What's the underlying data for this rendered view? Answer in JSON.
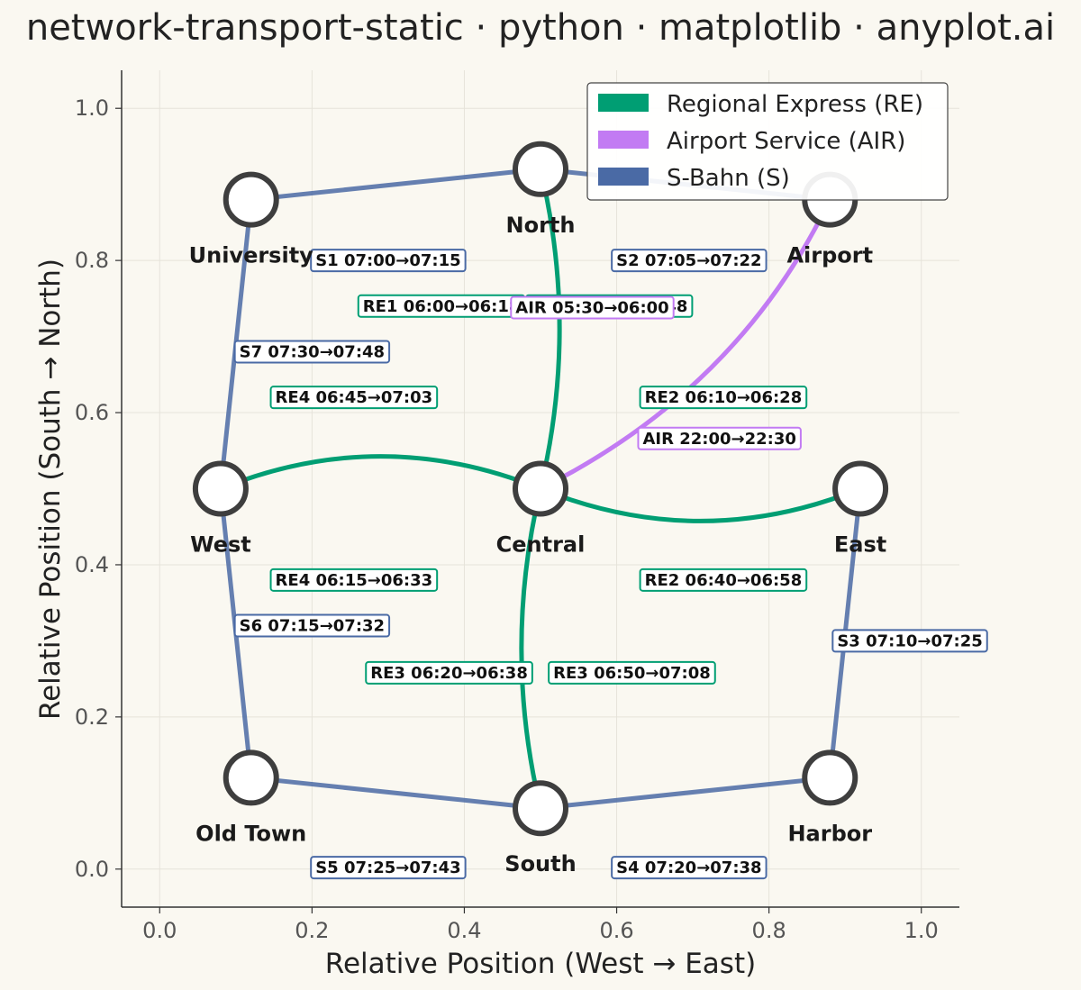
{
  "title": "network-transport-static · python · matplotlib · anyplot.ai",
  "chart_data": {
    "type": "network",
    "xlabel": "Relative Position (West → East)",
    "ylabel": "Relative Position (South → North)",
    "xlim": [
      -0.05,
      1.05
    ],
    "ylim": [
      -0.05,
      1.05
    ],
    "xticks": [
      0.0,
      0.2,
      0.4,
      0.6,
      0.8,
      1.0
    ],
    "yticks": [
      0.0,
      0.2,
      0.4,
      0.6,
      0.8,
      1.0
    ],
    "xtick_labels": [
      "0.0",
      "0.2",
      "0.4",
      "0.6",
      "0.8",
      "1.0"
    ],
    "ytick_labels": [
      "0.0",
      "0.2",
      "0.4",
      "0.6",
      "0.8",
      "1.0"
    ],
    "grid": true,
    "legend_position": "top-right",
    "series": [
      {
        "id": "RE",
        "name": "Regional Express (RE)",
        "color": "#009E73"
      },
      {
        "id": "AIR",
        "name": "Airport Service (AIR)",
        "color": "#C27BF3"
      },
      {
        "id": "S",
        "name": "S-Bahn (S)",
        "color": "#4A6AA5"
      }
    ],
    "stations": [
      {
        "id": "north",
        "name": "North",
        "x": 0.5,
        "y": 0.92
      },
      {
        "id": "university",
        "name": "University",
        "x": 0.12,
        "y": 0.88
      },
      {
        "id": "airport",
        "name": "Airport",
        "x": 0.88,
        "y": 0.88
      },
      {
        "id": "west",
        "name": "West",
        "x": 0.08,
        "y": 0.5
      },
      {
        "id": "central",
        "name": "Central",
        "x": 0.5,
        "y": 0.5
      },
      {
        "id": "east",
        "name": "East",
        "x": 0.92,
        "y": 0.5
      },
      {
        "id": "oldtown",
        "name": "Old Town",
        "x": 0.12,
        "y": 0.12
      },
      {
        "id": "south",
        "name": "South",
        "x": 0.5,
        "y": 0.08
      },
      {
        "id": "harbor",
        "name": "Harbor",
        "x": 0.88,
        "y": 0.12
      }
    ],
    "connections": [
      {
        "series": "S",
        "from": "university",
        "to": "north"
      },
      {
        "series": "S",
        "from": "north",
        "to": "airport"
      },
      {
        "series": "S",
        "from": "university",
        "to": "west"
      },
      {
        "series": "S",
        "from": "west",
        "to": "oldtown"
      },
      {
        "series": "S",
        "from": "oldtown",
        "to": "south"
      },
      {
        "series": "S",
        "from": "south",
        "to": "harbor"
      },
      {
        "series": "S",
        "from": "harbor",
        "to": "east"
      },
      {
        "series": "RE",
        "from": "central",
        "to": "north",
        "ctrl": [
          0.55,
          0.71
        ]
      },
      {
        "series": "RE",
        "from": "west",
        "to": "central",
        "ctrl": [
          0.29,
          0.585
        ]
      },
      {
        "series": "RE",
        "from": "central",
        "to": "east",
        "ctrl": [
          0.71,
          0.415
        ]
      },
      {
        "series": "RE",
        "from": "central",
        "to": "south",
        "ctrl": [
          0.45,
          0.29
        ]
      },
      {
        "series": "AIR",
        "from": "central",
        "to": "airport",
        "ctrl": [
          0.76,
          0.63
        ]
      }
    ],
    "schedule_labels": [
      {
        "series": "S",
        "text": "S1 07:00→07:15",
        "x": 0.3,
        "y": 0.8
      },
      {
        "series": "S",
        "text": "S2 07:05→07:22",
        "x": 0.695,
        "y": 0.8
      },
      {
        "series": "RE",
        "text": "RE1 06:00→06:18",
        "x": 0.37,
        "y": 0.74
      },
      {
        "series": "RE",
        "text": "RE1 06:30→06:48",
        "x": 0.59,
        "y": 0.74
      },
      {
        "series": "AIR",
        "text": "AIR 05:30→06:00",
        "x": 0.568,
        "y": 0.738
      },
      {
        "series": "S",
        "text": "S7 07:30→07:48",
        "x": 0.2,
        "y": 0.68
      },
      {
        "series": "RE",
        "text": "RE4 06:45→07:03",
        "x": 0.255,
        "y": 0.62
      },
      {
        "series": "RE",
        "text": "RE2 06:10→06:28",
        "x": 0.74,
        "y": 0.62
      },
      {
        "series": "AIR",
        "text": "AIR 22:00→22:30",
        "x": 0.735,
        "y": 0.566
      },
      {
        "series": "RE",
        "text": "RE4 06:15→06:33",
        "x": 0.255,
        "y": 0.38
      },
      {
        "series": "RE",
        "text": "RE2 06:40→06:58",
        "x": 0.74,
        "y": 0.38
      },
      {
        "series": "S",
        "text": "S6 07:15→07:32",
        "x": 0.2,
        "y": 0.32
      },
      {
        "series": "S",
        "text": "S3 07:10→07:25",
        "x": 0.985,
        "y": 0.3
      },
      {
        "series": "RE",
        "text": "RE3 06:20→06:38",
        "x": 0.38,
        "y": 0.258
      },
      {
        "series": "RE",
        "text": "RE3 06:50→07:08",
        "x": 0.62,
        "y": 0.258
      },
      {
        "series": "S",
        "text": "S5 07:25→07:43",
        "x": 0.3,
        "y": 0.002
      },
      {
        "series": "S",
        "text": "S4 07:20→07:38",
        "x": 0.695,
        "y": 0.002
      }
    ]
  }
}
